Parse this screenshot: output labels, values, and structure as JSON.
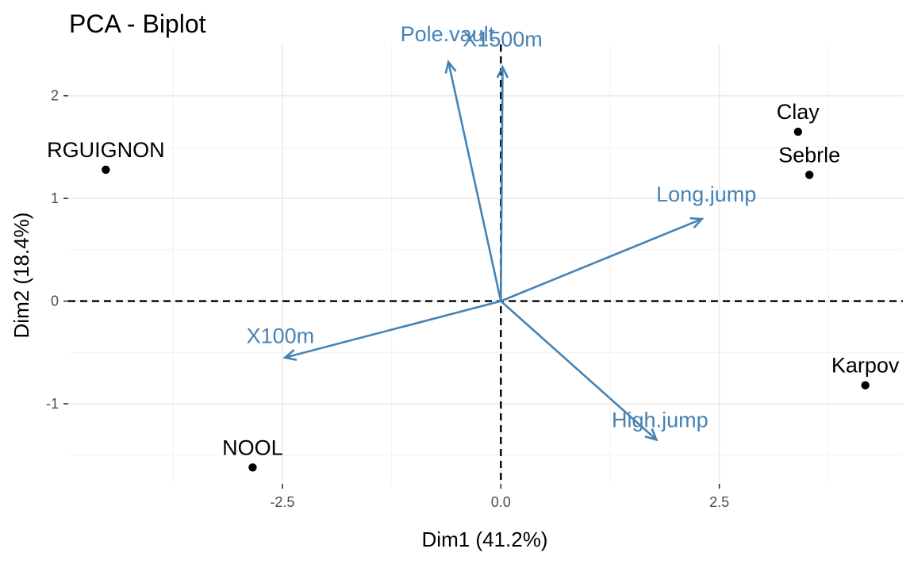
{
  "chart_data": {
    "type": "scatter",
    "title": "PCA - Biplot",
    "xlabel": "Dim1 (41.2%)",
    "ylabel": "Dim2 (18.4%)",
    "xlim": [
      -4.95,
      4.6
    ],
    "ylim": [
      -1.78,
      2.5
    ],
    "x_ticks": [
      -2.5,
      0.0,
      2.5
    ],
    "x_tick_labels": [
      "-2.5",
      "0.0",
      "2.5"
    ],
    "y_ticks": [
      -1,
      0,
      1,
      2
    ],
    "y_tick_labels": [
      "-1",
      "0",
      "1",
      "2"
    ],
    "x_minor_ticks": [
      -3.75,
      -1.25,
      1.25,
      3.75
    ],
    "y_minor_ticks": [
      -1.5,
      -0.5,
      0.5,
      1.5
    ],
    "grid": true,
    "reference_lines": {
      "x": 0,
      "y": 0,
      "style": "dashed"
    },
    "individuals": [
      {
        "label": "RGUIGNON",
        "x": -4.52,
        "y": 1.28
      },
      {
        "label": "Clay",
        "x": 3.4,
        "y": 1.65
      },
      {
        "label": "Sebrle",
        "x": 3.53,
        "y": 1.23
      },
      {
        "label": "Karpov",
        "x": 4.17,
        "y": -0.82
      },
      {
        "label": "NOOL",
        "x": -2.84,
        "y": -1.62
      }
    ],
    "variables": [
      {
        "label": "Pole.vault",
        "x": -0.6,
        "y": 2.33
      },
      {
        "label": "X1500m",
        "x": 0.02,
        "y": 2.28
      },
      {
        "label": "Long.jump",
        "x": 2.3,
        "y": 0.8
      },
      {
        "label": "X100m",
        "x": -2.47,
        "y": -0.55
      },
      {
        "label": "High.jump",
        "x": 1.78,
        "y": -1.35
      }
    ],
    "colors": {
      "individuals": "#000000",
      "variables": "#4682b4"
    }
  }
}
